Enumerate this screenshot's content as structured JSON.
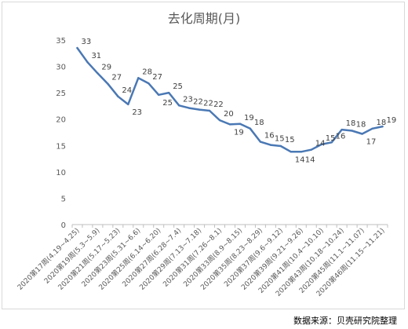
{
  "chart_data": {
    "type": "line",
    "title": "去化周期(月)",
    "xlabel": "",
    "ylabel": "",
    "ylim": [
      0,
      35
    ],
    "yticks": [
      0,
      5,
      10,
      15,
      20,
      25,
      30,
      35
    ],
    "grid": false,
    "legend": "none",
    "line_color": "#4a78b4",
    "categories": [
      "2020第17周(4.19~4.25)",
      "",
      "2020第19周(5.3~5.9)",
      "",
      "2020第21周(5.17~5.23)",
      "",
      "2020第23周(5.31~6.6)",
      "",
      "2020第25周(6.14~6.20)",
      "",
      "2020第27周(6.28~7.4)",
      "",
      "2020第29周(7.13~7.18)",
      "",
      "2020第31周(7.26~8.1)",
      "",
      "2020第33周(8.9~8.15)",
      "",
      "2020第35周(8.23~8.29)",
      "",
      "2020第37周(9.6~9.12)",
      "",
      "2020第39周(9.21~9.26)",
      "",
      "2020第41周(10.4~10.10)",
      "",
      "2020第43周(10.18~10.24)",
      "",
      "2020第45周(11.1~11.07)",
      "",
      "2020第46周(11.15~11.21)"
    ],
    "values": [
      33.5,
      30.8,
      28.7,
      26.7,
      24.3,
      22.8,
      27.8,
      26.8,
      24.6,
      25.0,
      22.6,
      22.1,
      21.8,
      21.6,
      19.8,
      19.0,
      19.1,
      18.2,
      15.7,
      15.1,
      14.9,
      13.8,
      13.8,
      14.2,
      15.2,
      15.6,
      18.0,
      17.8,
      17.2,
      18.2,
      18.6
    ],
    "labels": [
      "33",
      "31",
      "29",
      "27",
      "24",
      "23",
      "28",
      "27",
      "25",
      "25",
      "23",
      "22",
      "22",
      "22",
      "20",
      "19",
      "19",
      "18",
      "16",
      "15",
      "15",
      "14",
      "14",
      "14",
      "15",
      "16",
      "18",
      "18",
      "17",
      "18",
      "19"
    ]
  },
  "source": "数据来源：贝壳研究院整理"
}
